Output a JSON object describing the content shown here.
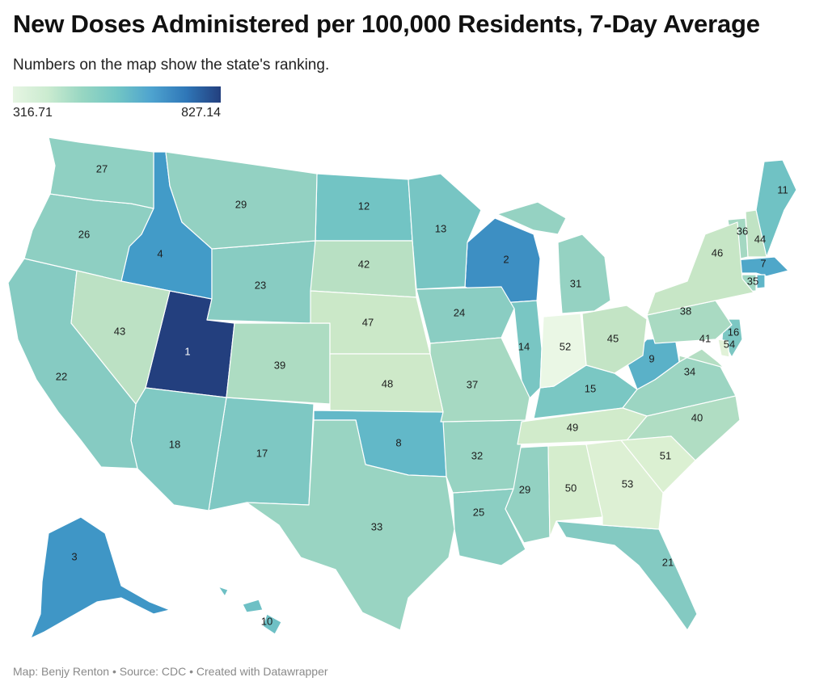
{
  "header": {
    "title": "New Doses Administered per 100,000 Residents, 7-Day Average",
    "subtitle": "Numbers on the map show the state's ranking."
  },
  "legend": {
    "min_label": "316.71",
    "max_label": "827.14",
    "colors": [
      "#e6f5e3",
      "#cbebd0",
      "#97d6c2",
      "#72c6c4",
      "#4ea3cf",
      "#2f77b8",
      "#233f7e"
    ]
  },
  "map_data": {
    "metric": "New doses administered per 100,000 residents, 7-day average",
    "scale": {
      "min": 316.71,
      "max": 827.14
    },
    "states": [
      {
        "id": "UT",
        "rank": "1",
        "color": "#233f7e"
      },
      {
        "id": "WI",
        "rank": "2",
        "color": "#3d8fc3"
      },
      {
        "id": "AK",
        "rank": "3",
        "color": "#3f96c6"
      },
      {
        "id": "ID",
        "rank": "4",
        "color": "#429bc8"
      },
      {
        "id": "MA",
        "rank": "7",
        "color": "#4fa7c9"
      },
      {
        "id": "OK",
        "rank": "8",
        "color": "#62b8c8"
      },
      {
        "id": "WV",
        "rank": "9",
        "color": "#5ab1c8"
      },
      {
        "id": "HI",
        "rank": "10",
        "color": "#6ec0c5"
      },
      {
        "id": "ME",
        "rank": "11",
        "color": "#70c2c4"
      },
      {
        "id": "ND",
        "rank": "12",
        "color": "#72c4c4"
      },
      {
        "id": "MN",
        "rank": "13",
        "color": "#77c5c3"
      },
      {
        "id": "IL",
        "rank": "14",
        "color": "#79c6c3"
      },
      {
        "id": "KY",
        "rank": "15",
        "color": "#7ac7c3"
      },
      {
        "id": "NJ",
        "rank": "16",
        "color": "#7cc7c3"
      },
      {
        "id": "NM",
        "rank": "17",
        "color": "#7ec8c3"
      },
      {
        "id": "AZ",
        "rank": "18",
        "color": "#80c9c3"
      },
      {
        "id": "FL",
        "rank": "21",
        "color": "#84cac2"
      },
      {
        "id": "CA",
        "rank": "22",
        "color": "#86cbc2"
      },
      {
        "id": "WY",
        "rank": "23",
        "color": "#88ccc2"
      },
      {
        "id": "IA",
        "rank": "24",
        "color": "#8acdc2"
      },
      {
        "id": "LA",
        "rank": "25",
        "color": "#8bcec2"
      },
      {
        "id": "OR",
        "rank": "26",
        "color": "#8ecfc2"
      },
      {
        "id": "WA",
        "rank": "27",
        "color": "#8fd0c2"
      },
      {
        "id": "MT",
        "rank": "29",
        "color": "#93d1c2"
      },
      {
        "id": "MS",
        "rank": "29",
        "color": "#93d1c2"
      },
      {
        "id": "MI",
        "rank": "31",
        "color": "#95d2c2"
      },
      {
        "id": "AR",
        "rank": "32",
        "color": "#97d3c2"
      },
      {
        "id": "TX",
        "rank": "33",
        "color": "#99d4c2"
      },
      {
        "id": "VA",
        "rank": "34",
        "color": "#9cd5c2"
      },
      {
        "id": "CT",
        "rank": "35",
        "color": "#a0d7c2"
      },
      {
        "id": "VT",
        "rank": "36",
        "color": "#a4d8c2"
      },
      {
        "id": "MO",
        "rank": "37",
        "color": "#a6d9c2"
      },
      {
        "id": "PA",
        "rank": "38",
        "color": "#a9dac2"
      },
      {
        "id": "CO",
        "rank": "39",
        "color": "#addcc2"
      },
      {
        "id": "NC",
        "rank": "40",
        "color": "#b0ddc3"
      },
      {
        "id": "MD",
        "rank": "41",
        "color": "#b4dec3"
      },
      {
        "id": "SD",
        "rank": "42",
        "color": "#b8e0c3"
      },
      {
        "id": "NV",
        "rank": "43",
        "color": "#bce1c4"
      },
      {
        "id": "NH",
        "rank": "44",
        "color": "#c0e3c4"
      },
      {
        "id": "OH",
        "rank": "45",
        "color": "#c3e4c5"
      },
      {
        "id": "NY",
        "rank": "46",
        "color": "#c7e6c6"
      },
      {
        "id": "NE",
        "rank": "47",
        "color": "#cbe8c8"
      },
      {
        "id": "KS",
        "rank": "48",
        "color": "#cee9c9"
      },
      {
        "id": "TN",
        "rank": "49",
        "color": "#d1ebcb"
      },
      {
        "id": "AL",
        "rank": "50",
        "color": "#d5edcd"
      },
      {
        "id": "SC",
        "rank": "51",
        "color": "#dbf0d2"
      },
      {
        "id": "IN",
        "rank": "52",
        "color": "#eaf7e5"
      },
      {
        "id": "GA",
        "rank": "53",
        "color": "#ddf0d4"
      },
      {
        "id": "DE",
        "rank": "54",
        "color": "#e1f2d8"
      },
      {
        "id": "RI",
        "rank": "",
        "color": "#5fb6c8"
      },
      {
        "id": "DC",
        "rank": "",
        "color": "#b4dec3"
      }
    ]
  },
  "footer": {
    "text": "Map: Benjy Renton • Source: CDC • Created with Datawrapper"
  }
}
